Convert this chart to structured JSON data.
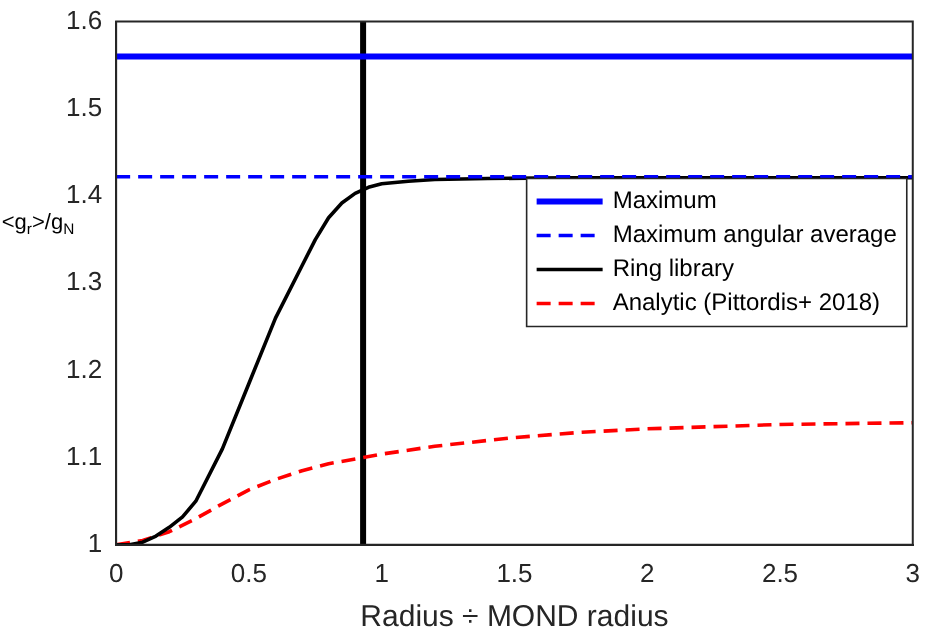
{
  "chart_data": {
    "type": "line",
    "xlabel": "Radius ÷ MOND radius",
    "ylabel": "<g$_{r}$>/g$_{N}$",
    "xlim": [
      0,
      3
    ],
    "xticks": [
      0,
      0.5,
      1,
      1.5,
      2,
      2.5,
      3
    ],
    "ylim": [
      1,
      1.6
    ],
    "yticks": [
      1,
      1.1,
      1.2,
      1.3,
      1.4,
      1.5,
      1.6
    ],
    "grid": false,
    "legend": "right",
    "marker": "none",
    "series": [
      {
        "name": "Maximum",
        "color": "#0000ff",
        "x": [
          0,
          3
        ],
        "values": [
          1.56,
          1.56
        ],
        "line_style": "solid"
      },
      {
        "name": "Maximum angular average",
        "color": "#0000ff",
        "x": [
          0,
          3
        ],
        "values": [
          1.422,
          1.422
        ],
        "line_style": "dashed"
      },
      {
        "name": "Ring library",
        "color": "#000000",
        "x": [
          0,
          0.05,
          0.1,
          0.15,
          0.2,
          0.25,
          0.3,
          0.4,
          0.5,
          0.6,
          0.7,
          0.75,
          0.8,
          0.85,
          0.9,
          0.95,
          1,
          1.1,
          1.2,
          1.4,
          1.7,
          2,
          2.5,
          3
        ],
        "values": [
          1,
          1,
          1.003,
          1.01,
          1.02,
          1.032,
          1.05,
          1.11,
          1.185,
          1.26,
          1.32,
          1.35,
          1.375,
          1.392,
          1.403,
          1.41,
          1.414,
          1.417,
          1.419,
          1.42,
          1.421,
          1.421,
          1.421,
          1.421
        ],
        "line_style": "solid"
      },
      {
        "name": "Analytic (Pittordis+ 2018)",
        "color": "#ff0000",
        "x": [
          0,
          0.1,
          0.2,
          0.3,
          0.4,
          0.5,
          0.6,
          0.7,
          0.8,
          0.93,
          1,
          1.2,
          1.5,
          1.75,
          2,
          2.5,
          3
        ],
        "values": [
          1,
          1.005,
          1.015,
          1.03,
          1.047,
          1.063,
          1.075,
          1.085,
          1.093,
          1.1,
          1.104,
          1.113,
          1.123,
          1.129,
          1.133,
          1.138,
          1.14
        ],
        "line_style": "dashed"
      }
    ],
    "ref_lines": [
      {
        "axis": "x",
        "value": 0.93,
        "color": "#000000",
        "line_style": "solid"
      }
    ]
  }
}
